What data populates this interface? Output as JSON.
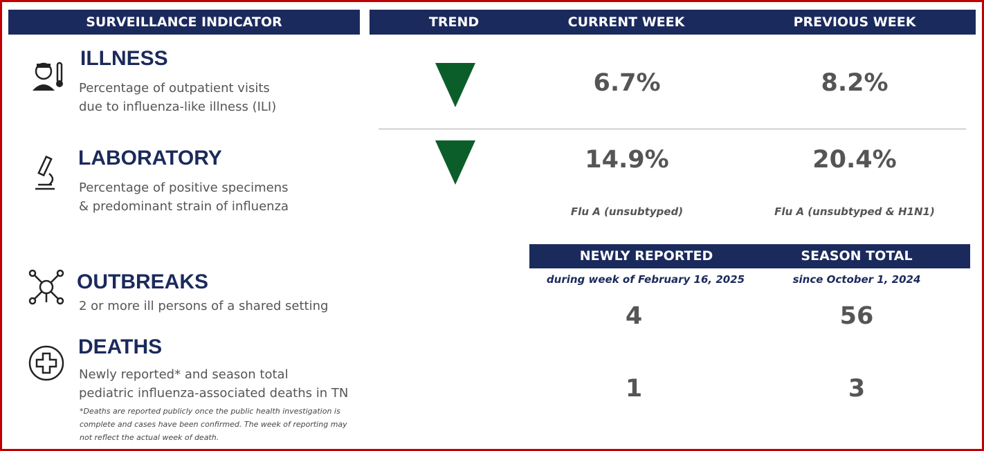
{
  "header": {
    "indicator": "SURVEILLANCE INDICATOR",
    "trend": "TREND",
    "current": "CURRENT WEEK",
    "previous": "PREVIOUS WEEK"
  },
  "rows": [
    {
      "title": "ILLNESS",
      "description": [
        "Percentage of outpatient visits",
        "due to influenza-like illness (ILI)"
      ],
      "current": "6.7%",
      "previous": "8.2%"
    },
    {
      "title": "LABORATORY",
      "description": [
        "Percentage of positive specimens",
        "& predominant strain of influenza"
      ],
      "current": "14.9%",
      "previous": "20.4%",
      "current_strain": "Flu A (unsubtyped)",
      "previous_strain": "Flu A (unsubtyped & H1N1)"
    }
  ],
  "subheader": {
    "newly": "NEWLY REPORTED",
    "newly_sub": "during week of February 16, 2025",
    "season": "SEASON TOTAL",
    "season_sub": "since October 1, 2024"
  },
  "counts": [
    {
      "title": "OUTBREAKS",
      "description": [
        "2 or more ill persons of a shared setting"
      ],
      "newly": 4,
      "season": 56
    },
    {
      "title": "DEATHS",
      "description": [
        "Newly reported* and season total",
        "pediatric influenza-associated deaths in TN"
      ],
      "newly": 1,
      "season": 3,
      "footnote": [
        "*Deaths are reported publicly once the public health investigation is",
        "complete and cases have been confirmed. The week of reporting may",
        "not reflect the actual week of death."
      ]
    }
  ]
}
